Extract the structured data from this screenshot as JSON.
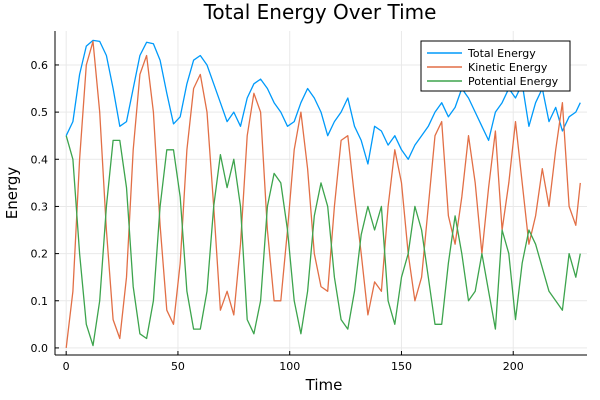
{
  "chart_data": {
    "type": "line",
    "title": "Total Energy Over Time",
    "xlabel": "Time",
    "ylabel": "Energy",
    "xlim": [
      -5,
      233
    ],
    "ylim": [
      -0.015,
      0.672
    ],
    "xticks": [
      0,
      50,
      100,
      150,
      200
    ],
    "xtick_labels": [
      "0",
      "50",
      "100",
      "150",
      "200"
    ],
    "yticks": [
      0.0,
      0.1,
      0.2,
      0.3,
      0.4,
      0.5,
      0.6
    ],
    "ytick_labels": [
      "0.0",
      "0.1",
      "0.2",
      "0.3",
      "0.4",
      "0.5",
      "0.6"
    ],
    "grid": true,
    "legend_position": "top-right",
    "series": [
      {
        "name": "Total Energy",
        "color": "#009AFA",
        "x": [
          0,
          3,
          6,
          9,
          12,
          15,
          18,
          21,
          24,
          27,
          30,
          33,
          36,
          39,
          42,
          45,
          48,
          51,
          54,
          57,
          60,
          63,
          66,
          69,
          72,
          75,
          78,
          81,
          84,
          87,
          90,
          93,
          96,
          99,
          102,
          105,
          108,
          111,
          114,
          117,
          120,
          123,
          126,
          129,
          132,
          135,
          138,
          141,
          144,
          147,
          150,
          153,
          156,
          159,
          162,
          165,
          168,
          171,
          174,
          177,
          180,
          183,
          186,
          189,
          192,
          195,
          198,
          201,
          204,
          207,
          210,
          213,
          216,
          219,
          222,
          225,
          228,
          230
        ],
        "values": [
          0.45,
          0.48,
          0.58,
          0.64,
          0.652,
          0.65,
          0.62,
          0.55,
          0.47,
          0.48,
          0.55,
          0.62,
          0.648,
          0.645,
          0.61,
          0.54,
          0.475,
          0.49,
          0.56,
          0.61,
          0.62,
          0.6,
          0.56,
          0.52,
          0.48,
          0.5,
          0.47,
          0.53,
          0.56,
          0.57,
          0.55,
          0.52,
          0.5,
          0.47,
          0.48,
          0.52,
          0.55,
          0.53,
          0.5,
          0.45,
          0.48,
          0.5,
          0.53,
          0.47,
          0.44,
          0.39,
          0.47,
          0.46,
          0.43,
          0.45,
          0.42,
          0.4,
          0.43,
          0.45,
          0.47,
          0.5,
          0.52,
          0.49,
          0.51,
          0.55,
          0.53,
          0.5,
          0.47,
          0.44,
          0.5,
          0.52,
          0.55,
          0.53,
          0.56,
          0.47,
          0.52,
          0.55,
          0.48,
          0.51,
          0.46,
          0.49,
          0.5,
          0.52
        ]
      },
      {
        "name": "Kinetic Energy",
        "color": "#E26F46",
        "x": [
          0,
          3,
          6,
          9,
          12,
          15,
          18,
          21,
          24,
          27,
          30,
          33,
          36,
          39,
          42,
          45,
          48,
          51,
          54,
          57,
          60,
          63,
          66,
          69,
          72,
          75,
          78,
          81,
          84,
          87,
          90,
          93,
          96,
          99,
          102,
          105,
          108,
          111,
          114,
          117,
          120,
          123,
          126,
          129,
          132,
          135,
          138,
          141,
          144,
          147,
          150,
          153,
          156,
          159,
          162,
          165,
          168,
          171,
          174,
          177,
          180,
          183,
          186,
          189,
          192,
          195,
          198,
          201,
          204,
          207,
          210,
          213,
          216,
          219,
          222,
          225,
          228,
          230
        ],
        "values": [
          0.0,
          0.12,
          0.4,
          0.6,
          0.65,
          0.5,
          0.25,
          0.06,
          0.02,
          0.15,
          0.42,
          0.58,
          0.62,
          0.5,
          0.26,
          0.08,
          0.05,
          0.18,
          0.42,
          0.55,
          0.58,
          0.5,
          0.3,
          0.08,
          0.12,
          0.07,
          0.22,
          0.45,
          0.54,
          0.5,
          0.25,
          0.1,
          0.1,
          0.25,
          0.42,
          0.5,
          0.38,
          0.2,
          0.13,
          0.12,
          0.3,
          0.44,
          0.45,
          0.32,
          0.2,
          0.07,
          0.14,
          0.12,
          0.3,
          0.42,
          0.35,
          0.2,
          0.1,
          0.15,
          0.3,
          0.45,
          0.48,
          0.28,
          0.22,
          0.32,
          0.45,
          0.35,
          0.2,
          0.34,
          0.46,
          0.25,
          0.35,
          0.48,
          0.35,
          0.22,
          0.28,
          0.38,
          0.3,
          0.42,
          0.52,
          0.3,
          0.26,
          0.35
        ]
      },
      {
        "name": "Potential Energy",
        "color": "#3DA44D",
        "x": [
          0,
          3,
          6,
          9,
          12,
          15,
          18,
          21,
          24,
          27,
          30,
          33,
          36,
          39,
          42,
          45,
          48,
          51,
          54,
          57,
          60,
          63,
          66,
          69,
          72,
          75,
          78,
          81,
          84,
          87,
          90,
          93,
          96,
          99,
          102,
          105,
          108,
          111,
          114,
          117,
          120,
          123,
          126,
          129,
          132,
          135,
          138,
          141,
          144,
          147,
          150,
          153,
          156,
          159,
          162,
          165,
          168,
          171,
          174,
          177,
          180,
          183,
          186,
          189,
          192,
          195,
          198,
          201,
          204,
          207,
          210,
          213,
          216,
          219,
          222,
          225,
          228,
          230
        ],
        "values": [
          0.45,
          0.4,
          0.2,
          0.05,
          0.005,
          0.1,
          0.3,
          0.44,
          0.44,
          0.34,
          0.13,
          0.03,
          0.02,
          0.1,
          0.3,
          0.42,
          0.42,
          0.32,
          0.12,
          0.04,
          0.04,
          0.12,
          0.3,
          0.41,
          0.34,
          0.4,
          0.3,
          0.06,
          0.03,
          0.1,
          0.3,
          0.37,
          0.35,
          0.25,
          0.1,
          0.03,
          0.12,
          0.28,
          0.35,
          0.3,
          0.15,
          0.06,
          0.04,
          0.12,
          0.24,
          0.3,
          0.25,
          0.3,
          0.1,
          0.05,
          0.15,
          0.2,
          0.3,
          0.25,
          0.15,
          0.05,
          0.05,
          0.18,
          0.28,
          0.2,
          0.1,
          0.12,
          0.2,
          0.12,
          0.04,
          0.25,
          0.2,
          0.06,
          0.18,
          0.25,
          0.22,
          0.17,
          0.12,
          0.1,
          0.08,
          0.2,
          0.15,
          0.2
        ]
      }
    ]
  }
}
